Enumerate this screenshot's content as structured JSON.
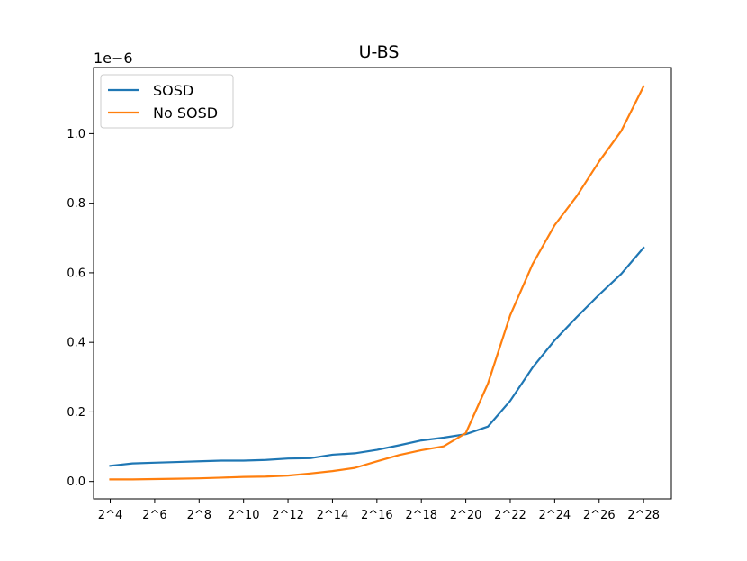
{
  "chart_data": {
    "type": "line",
    "title": "U-BS",
    "offset_text": "1e−6",
    "x_tick_labels": [
      "2^4",
      "2^6",
      "2^8",
      "2^10",
      "2^12",
      "2^14",
      "2^16",
      "2^18",
      "2^20",
      "2^22",
      "2^24",
      "2^26",
      "2^28"
    ],
    "x_tick_exponents": [
      4,
      6,
      8,
      10,
      12,
      14,
      16,
      18,
      20,
      22,
      24,
      26,
      28
    ],
    "xlim": [
      3.25,
      29.25
    ],
    "y_tick_values": [
      0.0,
      0.2,
      0.4,
      0.6,
      0.8,
      1.0
    ],
    "y_tick_labels": [
      "0.0",
      "0.2",
      "0.4",
      "0.6",
      "0.8",
      "1.0"
    ],
    "ylim": [
      -0.05,
      1.19
    ],
    "x": [
      4,
      5,
      6,
      7,
      8,
      9,
      10,
      11,
      12,
      13,
      14,
      15,
      16,
      17,
      18,
      19,
      20,
      21,
      22,
      23,
      24,
      25,
      26,
      27,
      28
    ],
    "series": [
      {
        "name": "SOSD",
        "color": "#1f77b4",
        "values": [
          0.045,
          0.052,
          0.054,
          0.056,
          0.058,
          0.06,
          0.06,
          0.062,
          0.066,
          0.067,
          0.077,
          0.081,
          0.091,
          0.104,
          0.118,
          0.126,
          0.136,
          0.158,
          0.232,
          0.327,
          0.406,
          0.473,
          0.537,
          0.597,
          0.672
        ]
      },
      {
        "name": "No SOSD",
        "color": "#ff7f0e",
        "values": [
          0.006,
          0.006,
          0.007,
          0.008,
          0.009,
          0.011,
          0.013,
          0.014,
          0.017,
          0.023,
          0.03,
          0.039,
          0.058,
          0.076,
          0.09,
          0.101,
          0.139,
          0.282,
          0.478,
          0.624,
          0.737,
          0.821,
          0.92,
          1.008,
          1.136
        ]
      }
    ],
    "grid": false,
    "legend_position": "upper-left"
  }
}
